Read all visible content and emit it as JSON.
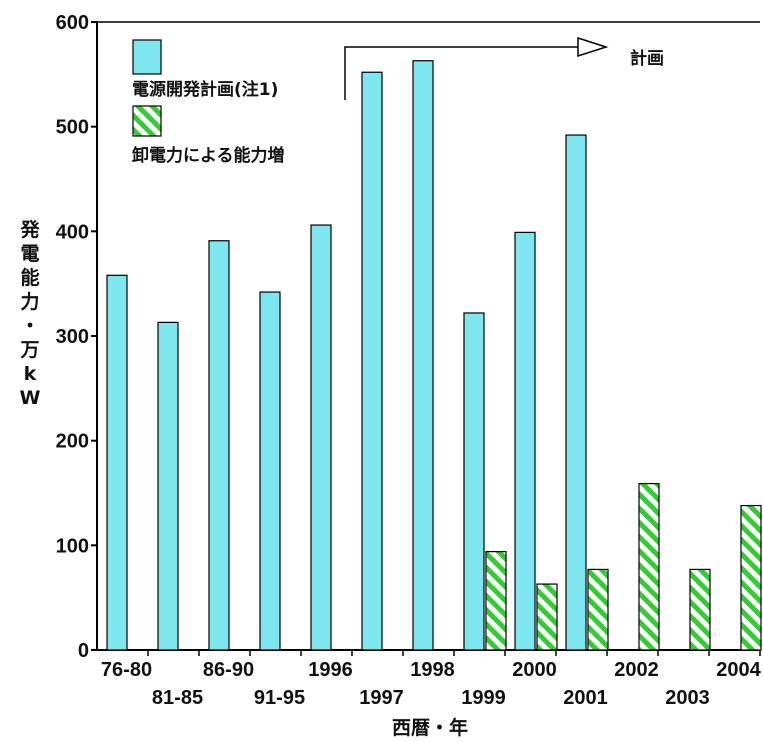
{
  "chart_data": {
    "type": "bar",
    "title": "",
    "xlabel": "西暦・年",
    "ylabel": "発電能力・万kW",
    "ylim": [
      0,
      600
    ],
    "yticks": [
      "0",
      "100",
      "200",
      "300",
      "400",
      "500",
      "600"
    ],
    "categories": [
      "76-80",
      "81-85",
      "86-90",
      "91-95",
      "1996",
      "1997",
      "1998",
      "1999",
      "2000",
      "2001",
      "2002",
      "2003",
      "2004"
    ],
    "series": [
      {
        "name": "電源開発計画(注1)",
        "color": "#7de6ee",
        "values": [
          358,
          313,
          391,
          342,
          406,
          552,
          563,
          322,
          399,
          492,
          null,
          null,
          null
        ]
      },
      {
        "name": "卸電力による能力増",
        "color": "#33cc33",
        "pattern": "diagonal-hatch",
        "values": [
          null,
          null,
          null,
          null,
          null,
          null,
          null,
          94,
          63,
          77,
          159,
          77,
          138
        ]
      }
    ],
    "annotation": "計画",
    "grid": false,
    "legend_position": "top-left"
  }
}
